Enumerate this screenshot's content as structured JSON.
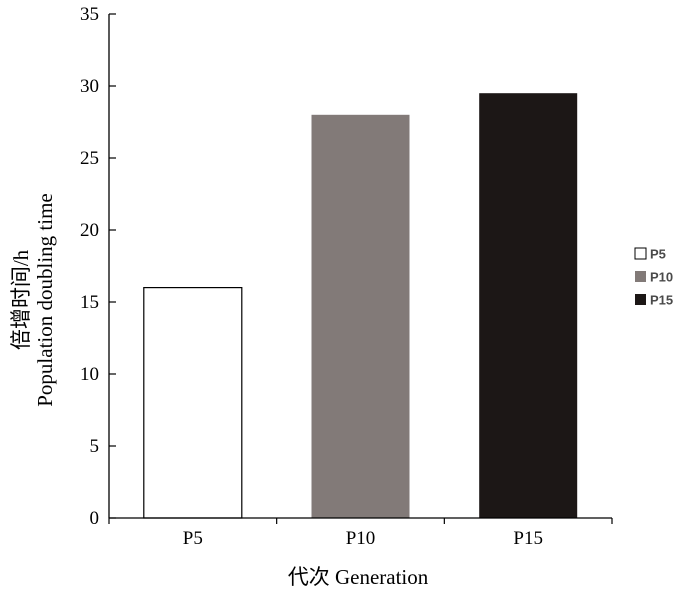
{
  "chart_data": {
    "type": "bar",
    "categories": [
      "P5",
      "P10",
      "P15"
    ],
    "values": [
      16,
      28,
      29.5
    ],
    "colors": [
      "#ffffff",
      "#827a78",
      "#1c1716"
    ],
    "ylim": [
      0,
      35
    ],
    "yticks": [
      0,
      5,
      10,
      15,
      20,
      25,
      30,
      35
    ],
    "xlabel": "代次 Generation",
    "ylabel_line1": "倍增时间/h",
    "ylabel_line2": "Population doubling time",
    "legend": {
      "position": "right",
      "entries": [
        "P5",
        "P10",
        "P15"
      ]
    },
    "grid": false
  }
}
